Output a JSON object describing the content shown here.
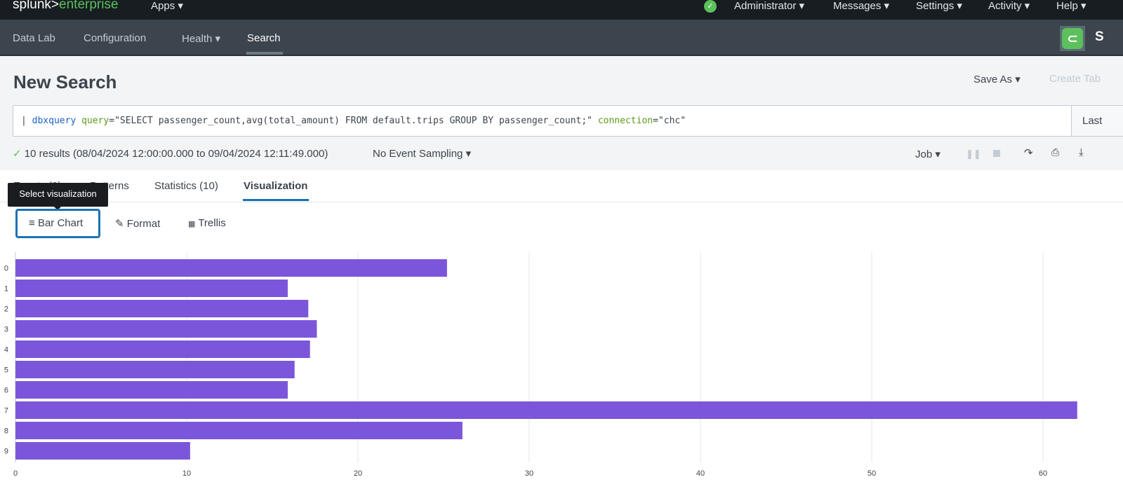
{
  "topbar": {
    "logo": {
      "a": "splunk>",
      "b": "enterprise"
    },
    "apps": "Apps ▾",
    "status_icon": "check-circle-icon",
    "menus": [
      "Administrator ▾",
      "Messages ▾",
      "Settings ▾",
      "Activity ▾",
      "Help ▾"
    ]
  },
  "appbar": {
    "items": [
      "Data Lab",
      "Configuration",
      "Health ▾",
      "Search"
    ],
    "active": "Search",
    "app_icon": "plug-icon",
    "app_label": "S"
  },
  "page": {
    "title": "New Search",
    "save_as": "Save As ▾",
    "create_table": "Create Tab"
  },
  "search": {
    "pipe": "| ",
    "cmd": "dbxquery",
    "arg1": "query",
    "v1": "=\"SELECT passenger_count,avg(total_amount) FROM default.trips GROUP BY passenger_count;\" ",
    "arg2": "connection",
    "v2": "=\"chc\"",
    "time_picker": "Last"
  },
  "status": {
    "results": "10 results (08/04/2024 12:00:00.000 to 09/04/2024 12:11:49.000)",
    "sampling": "No Event Sampling ▾",
    "job": "Job ▾"
  },
  "tabs": [
    "Events (0)",
    "Patterns",
    "Statistics (10)",
    "Visualization"
  ],
  "active_tab": "Visualization",
  "tooltip": "Select visualization",
  "viz_buttons": {
    "bar_chart": "Bar Chart",
    "format": "Format",
    "trellis": "Trellis"
  },
  "colors": {
    "bar": "#7b56db",
    "accent": "#1a73b5",
    "green": "#5cc05c"
  },
  "chart_data": {
    "type": "bar",
    "orientation": "horizontal",
    "categories": [
      "0",
      "1",
      "2",
      "3",
      "4",
      "5",
      "6",
      "7",
      "8",
      "9"
    ],
    "values": [
      25.2,
      15.9,
      17.1,
      17.6,
      17.2,
      16.3,
      15.9,
      62.0,
      26.1,
      10.2
    ],
    "xlim": [
      0,
      63
    ],
    "xticks": [
      0,
      10,
      20,
      30,
      40,
      50,
      60
    ],
    "grid": true
  }
}
